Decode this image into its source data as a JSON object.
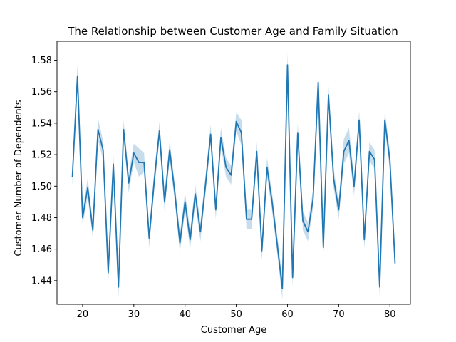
{
  "chart_data": {
    "type": "line",
    "title": "The Relationship between Customer Age and Family Situation",
    "xlabel": "Customer Age",
    "ylabel": "Customer Number of Dependents",
    "xlim": [
      15,
      84
    ],
    "ylim": [
      1.425,
      1.592
    ],
    "xticks": [
      20,
      30,
      40,
      50,
      60,
      70,
      80
    ],
    "yticks": [
      1.44,
      1.46,
      1.48,
      1.5,
      1.52,
      1.54,
      1.56,
      1.58
    ],
    "grid": false,
    "colors": {
      "line": "#1f77b4",
      "band": "#1f77b4"
    },
    "series": [
      {
        "x": [
          18,
          19,
          20,
          21,
          22,
          23,
          24,
          25,
          26,
          27,
          28,
          29,
          30,
          31,
          32,
          33,
          34,
          35,
          36,
          37,
          38,
          39,
          40,
          41,
          42,
          43,
          44,
          45,
          46,
          47,
          48,
          49,
          50,
          51,
          52,
          53,
          54,
          55,
          56,
          57,
          58,
          59,
          60,
          61,
          62,
          63,
          64,
          65,
          66,
          67,
          68,
          69,
          70,
          71,
          72,
          73,
          74,
          75,
          76,
          77,
          78,
          79,
          80,
          81
        ],
        "y": [
          1.506,
          1.57,
          1.48,
          1.499,
          1.472,
          1.536,
          1.523,
          1.445,
          1.514,
          1.436,
          1.536,
          1.502,
          1.521,
          1.515,
          1.515,
          1.467,
          1.504,
          1.535,
          1.49,
          1.523,
          1.496,
          1.464,
          1.49,
          1.466,
          1.495,
          1.471,
          1.501,
          1.533,
          1.485,
          1.531,
          1.512,
          1.507,
          1.541,
          1.534,
          1.479,
          1.479,
          1.522,
          1.459,
          1.512,
          1.49,
          1.463,
          1.435,
          1.577,
          1.442,
          1.534,
          1.478,
          1.471,
          1.492,
          1.566,
          1.461,
          1.558,
          1.505,
          1.485,
          1.522,
          1.529,
          1.5,
          1.542,
          1.466,
          1.522,
          1.517,
          1.436,
          1.542,
          1.516,
          1.451
        ],
        "ci": [
          0.006,
          0.007,
          0.005,
          0.006,
          0.005,
          0.007,
          0.006,
          0.006,
          0.006,
          0.007,
          0.006,
          0.006,
          0.006,
          0.009,
          0.006,
          0.006,
          0.006,
          0.006,
          0.006,
          0.006,
          0.006,
          0.006,
          0.006,
          0.006,
          0.006,
          0.006,
          0.006,
          0.006,
          0.006,
          0.006,
          0.006,
          0.006,
          0.006,
          0.008,
          0.006,
          0.006,
          0.006,
          0.006,
          0.006,
          0.006,
          0.006,
          0.007,
          0.008,
          0.006,
          0.006,
          0.006,
          0.006,
          0.006,
          0.006,
          0.006,
          0.006,
          0.006,
          0.006,
          0.008,
          0.008,
          0.006,
          0.006,
          0.006,
          0.006,
          0.006,
          0.006,
          0.006,
          0.006,
          0.006
        ]
      }
    ]
  }
}
